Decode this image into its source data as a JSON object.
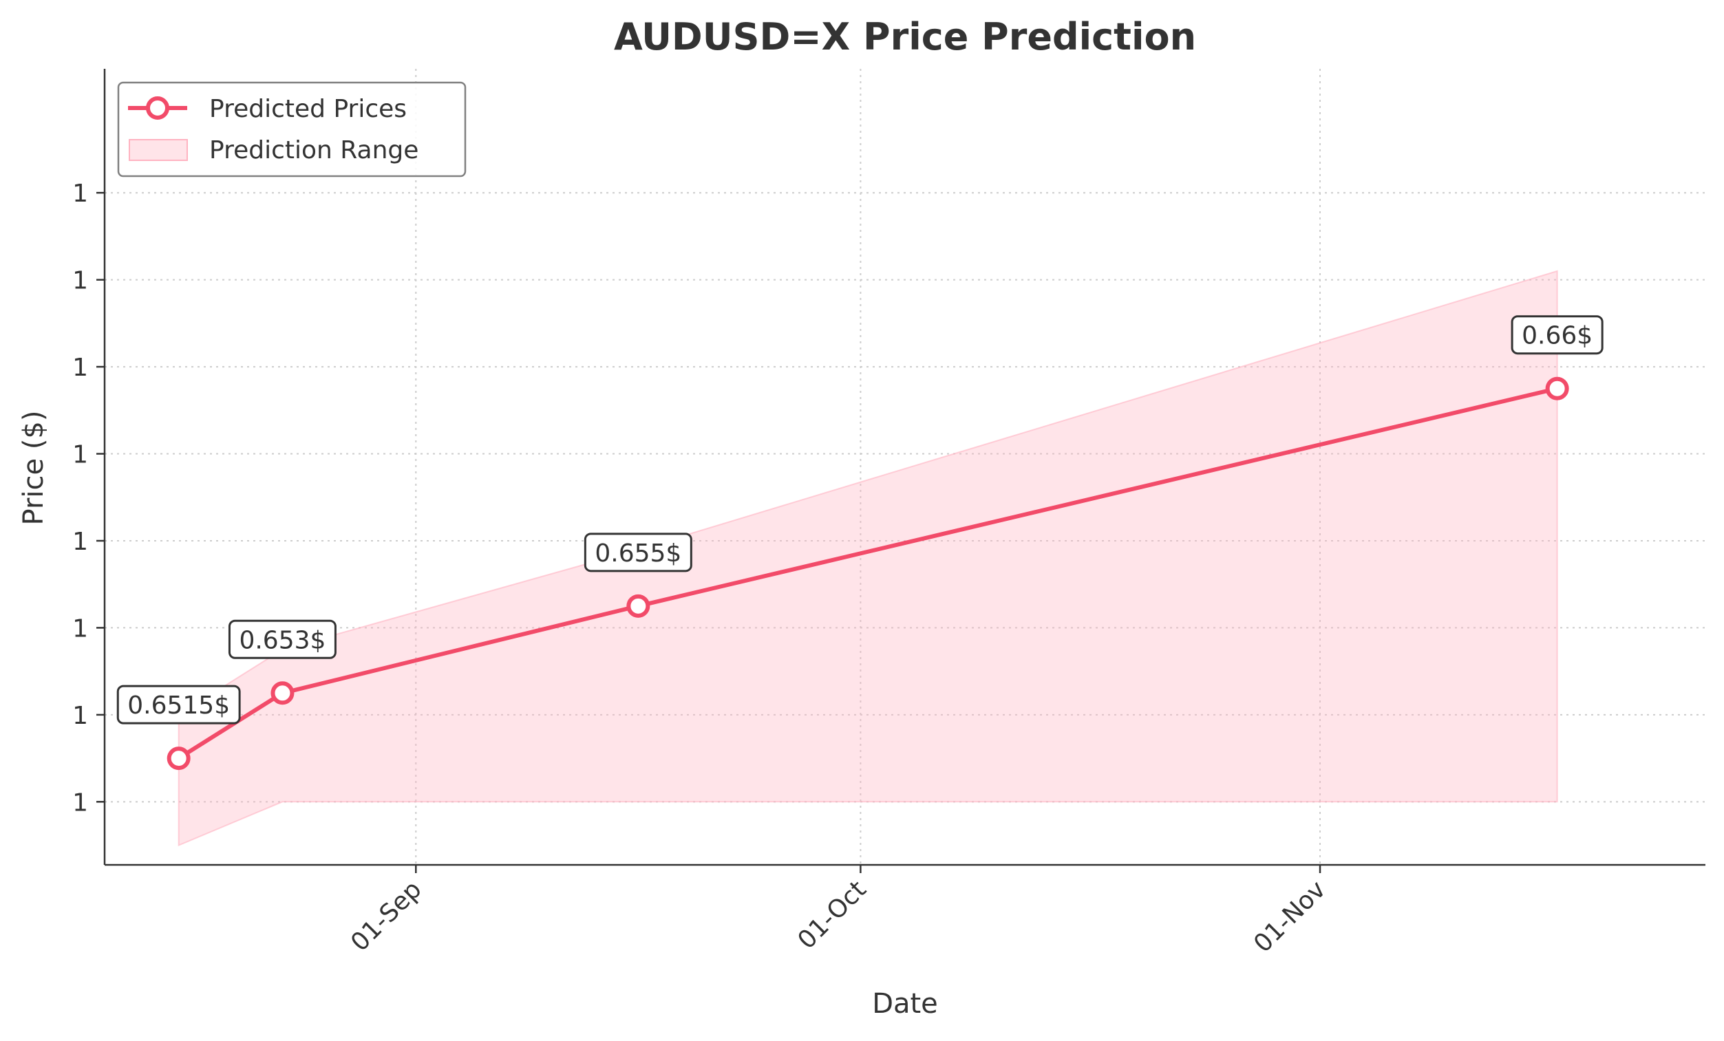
{
  "chart_data": {
    "type": "line",
    "title": "AUDUSD=X Price Prediction",
    "xlabel": "Date",
    "ylabel": "Price ($)",
    "x": [
      "2024-08-16",
      "2024-08-23",
      "2024-09-16",
      "2024-11-17"
    ],
    "series": [
      {
        "name": "Predicted Prices",
        "values": [
          0.6515,
          0.653,
          0.655,
          0.66
        ],
        "color": "#f24b69",
        "labels": [
          "0.6515$",
          "0.653$",
          "0.655$",
          "0.66$"
        ]
      }
    ],
    "range": {
      "name": "Prediction Range",
      "color": "#ffb3c1",
      "lower": [
        0.6495,
        0.6505,
        0.6505,
        0.6505
      ],
      "upper": [
        0.6525,
        0.654,
        0.6563,
        0.6627
      ]
    },
    "xlim": [
      "2024-08-11",
      "2024-11-27"
    ],
    "ylim": [
      0.64905,
      0.66735
    ],
    "xticks": [
      {
        "date": "2024-09-01",
        "label": "01-Sep"
      },
      {
        "date": "2024-10-01",
        "label": "01-Oct"
      },
      {
        "date": "2024-11-01",
        "label": "01-Nov"
      }
    ],
    "yticks": [
      {
        "value": 0.6505,
        "label": "1"
      },
      {
        "value": 0.6525,
        "label": "1"
      },
      {
        "value": 0.6545,
        "label": "1"
      },
      {
        "value": 0.6565,
        "label": "1"
      },
      {
        "value": 0.6585,
        "label": "1"
      },
      {
        "value": 0.6605,
        "label": "1"
      },
      {
        "value": 0.6625,
        "label": "1"
      },
      {
        "value": 0.6645,
        "label": "1"
      }
    ],
    "grid": true,
    "legend_position": "top-left"
  }
}
